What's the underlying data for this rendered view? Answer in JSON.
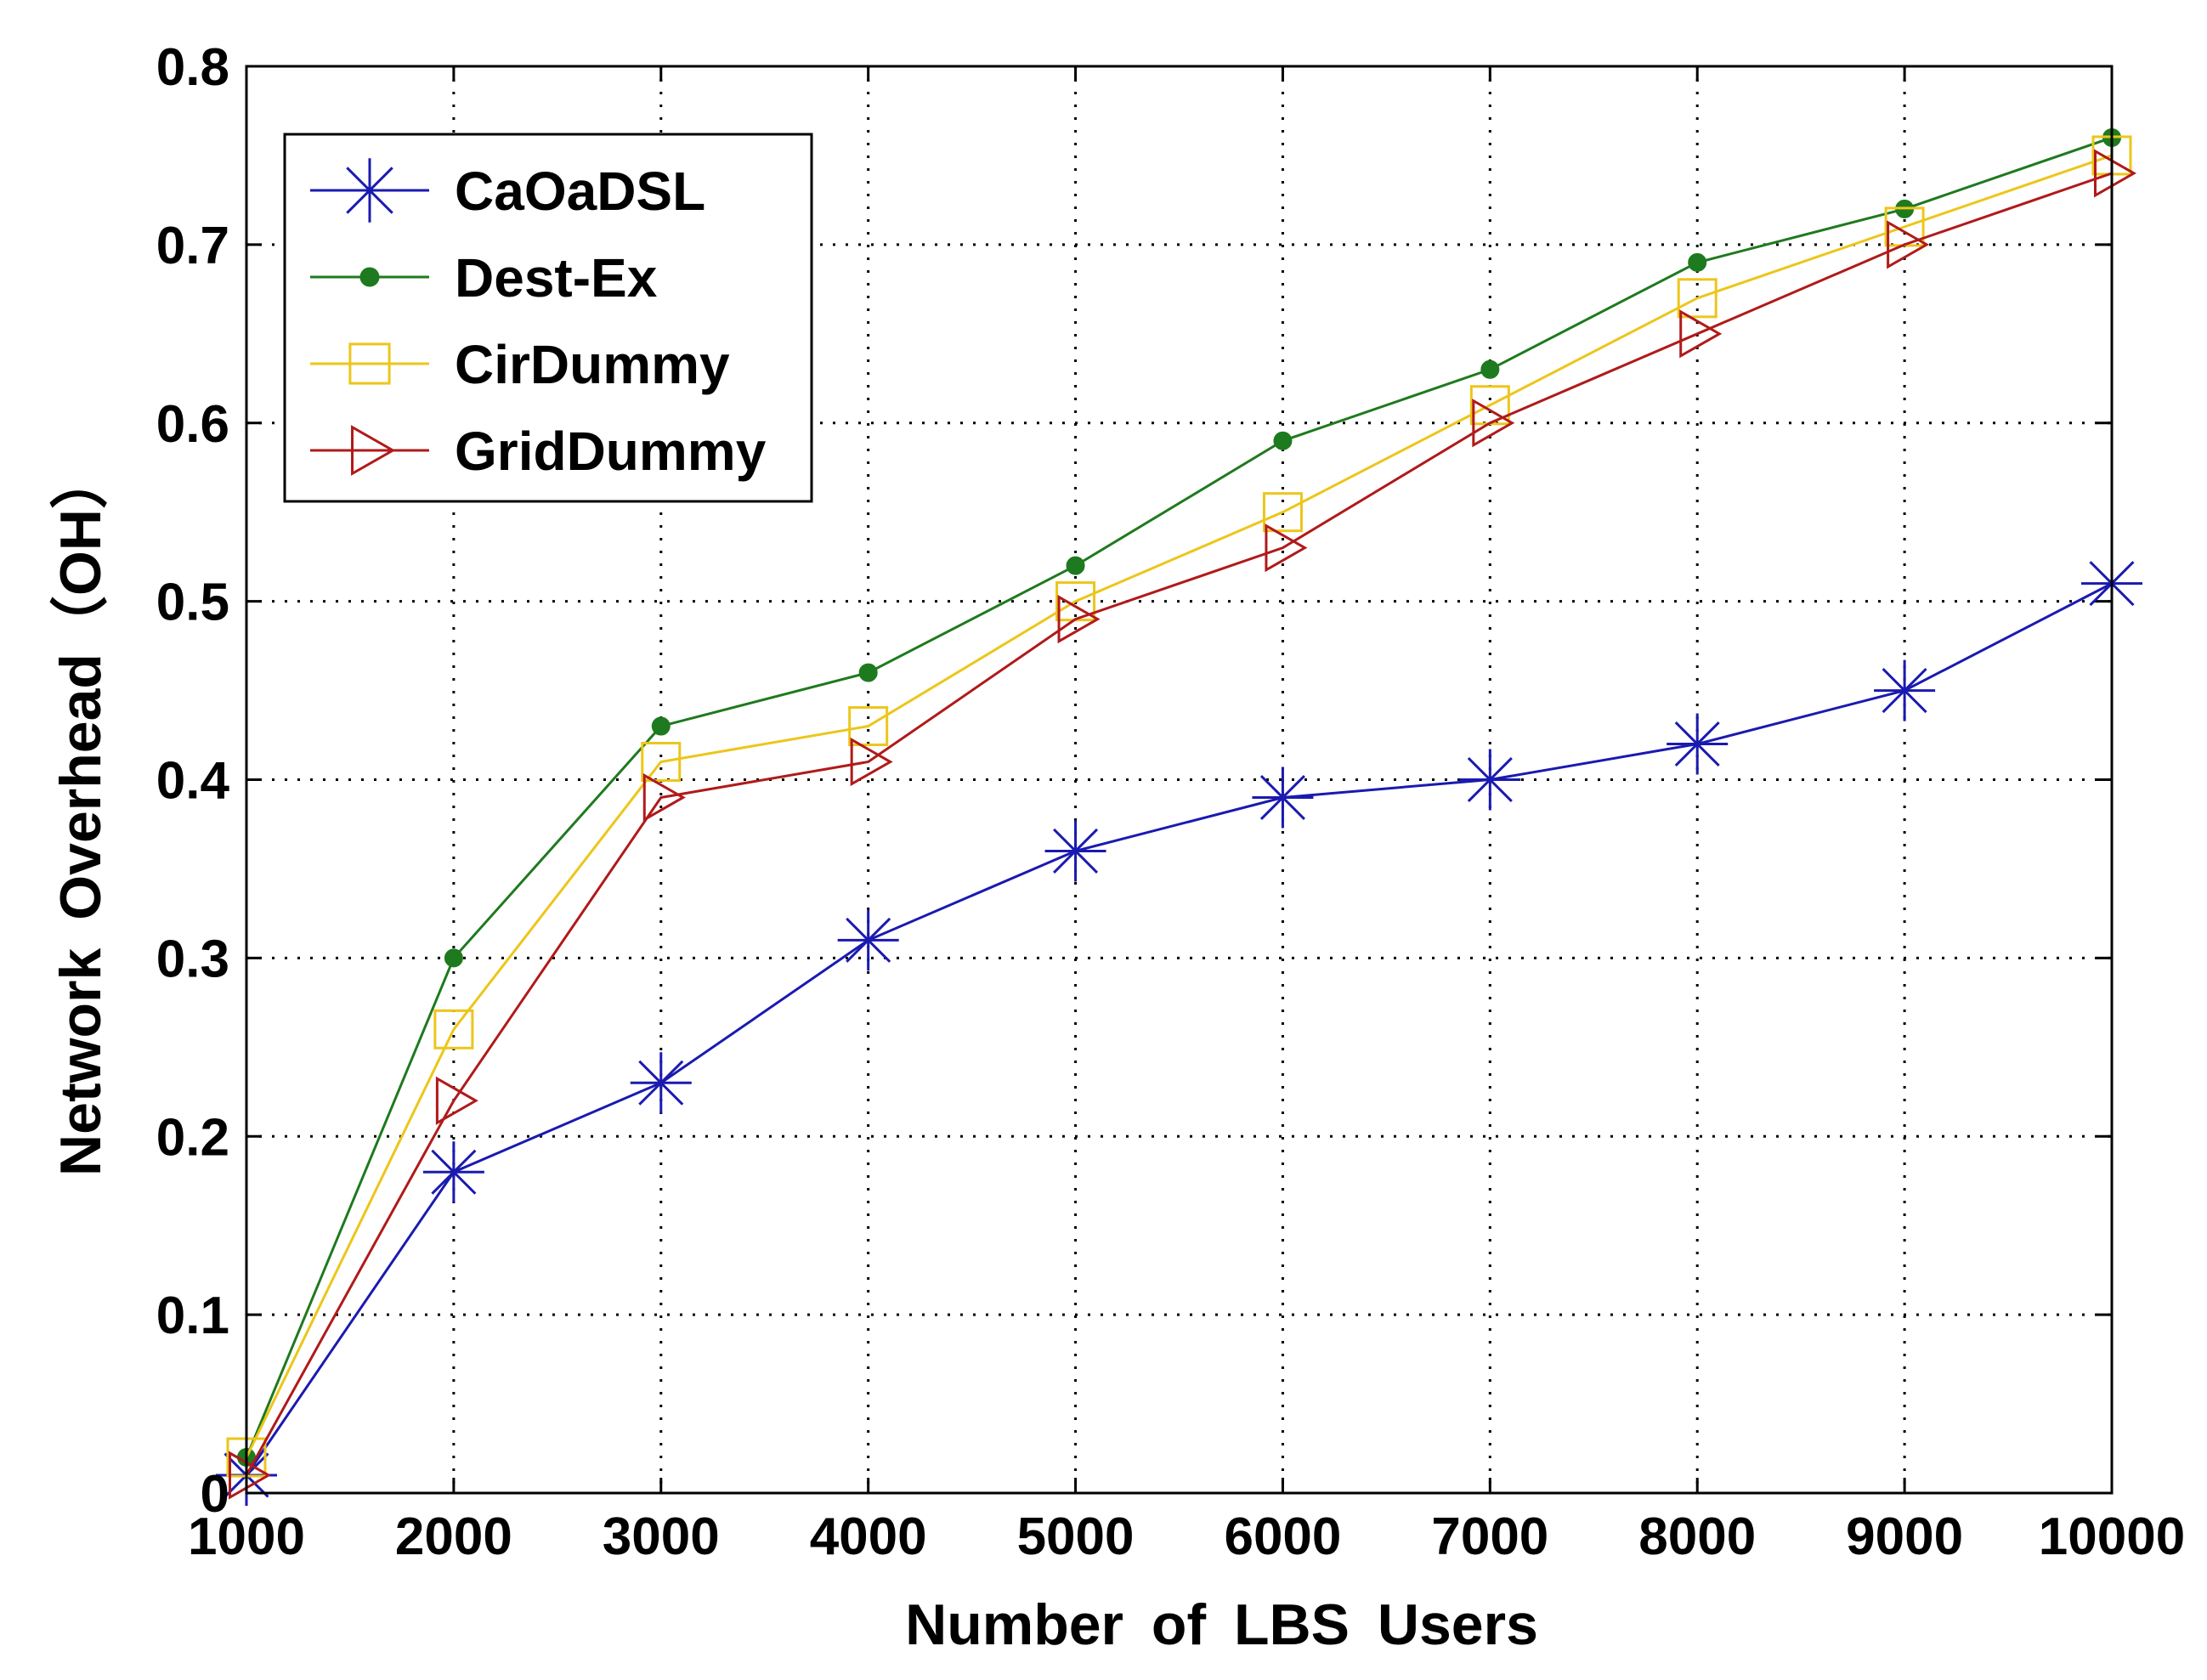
{
  "chart_data": {
    "type": "line",
    "title": "",
    "xlabel": "Number of LBS Users",
    "ylabel": "Network Overhead（OH）",
    "x": [
      1000,
      2000,
      3000,
      4000,
      5000,
      6000,
      7000,
      8000,
      9000,
      10000
    ],
    "xlim": [
      1000,
      10000
    ],
    "ylim": [
      0,
      0.8
    ],
    "xticks": [
      "1000",
      "2000",
      "3000",
      "4000",
      "5000",
      "6000",
      "7000",
      "8000",
      "9000",
      "10000"
    ],
    "yticks": [
      "0",
      "0.1",
      "0.2",
      "0.3",
      "0.4",
      "0.5",
      "0.6",
      "0.7",
      "0.8"
    ],
    "grid": true,
    "legend_position": "top-left",
    "series": [
      {
        "name": "CaOaDSL",
        "color": "#1a1ab0",
        "marker": "asterisk",
        "values": [
          0.01,
          0.18,
          0.23,
          0.31,
          0.36,
          0.39,
          0.4,
          0.42,
          0.45,
          0.51
        ]
      },
      {
        "name": "Dest-Ex",
        "color": "#1e7a1e",
        "marker": "dot",
        "values": [
          0.02,
          0.3,
          0.43,
          0.46,
          0.52,
          0.59,
          0.63,
          0.69,
          0.72,
          0.76
        ]
      },
      {
        "name": "CirDummy",
        "color": "#ecc61a",
        "marker": "square",
        "values": [
          0.02,
          0.26,
          0.41,
          0.43,
          0.5,
          0.55,
          0.61,
          0.67,
          0.71,
          0.75
        ]
      },
      {
        "name": "GridDummy",
        "color": "#b01a1a",
        "marker": "triangle-right",
        "values": [
          0.01,
          0.22,
          0.39,
          0.41,
          0.49,
          0.53,
          0.6,
          0.65,
          0.7,
          0.74
        ]
      }
    ]
  }
}
